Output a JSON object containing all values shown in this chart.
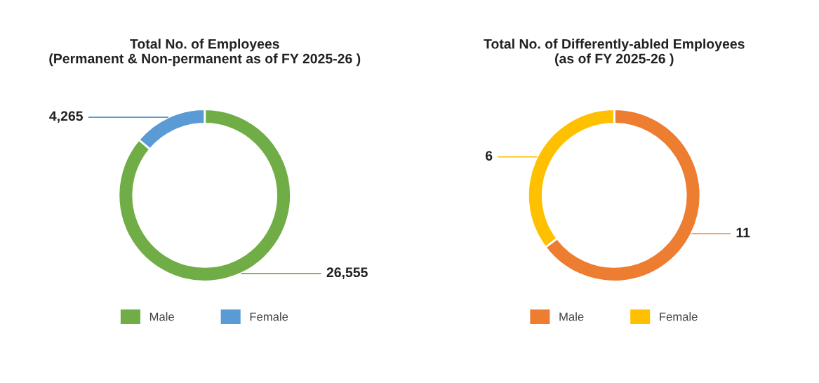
{
  "chart_data": [
    {
      "type": "donut",
      "title": "Total No. of Employees\n(Permanent & Non-permanent as of FY 2025-26 )",
      "categories": [
        "Male",
        "Female"
      ],
      "values": [
        26555,
        4265
      ],
      "colors": [
        "#70ad47",
        "#5b9bd5"
      ],
      "value_labels": [
        "26,555",
        "4,265"
      ],
      "legend": "bottom"
    },
    {
      "type": "donut",
      "title": "Total No. of Differently-abled Employees\n(as of FY 2025-26 )",
      "categories": [
        "Male",
        "Female"
      ],
      "values": [
        11,
        6
      ],
      "colors": [
        "#ed7d31",
        "#ffc000"
      ],
      "value_labels": [
        "11",
        "6"
      ],
      "legend": "bottom"
    }
  ]
}
